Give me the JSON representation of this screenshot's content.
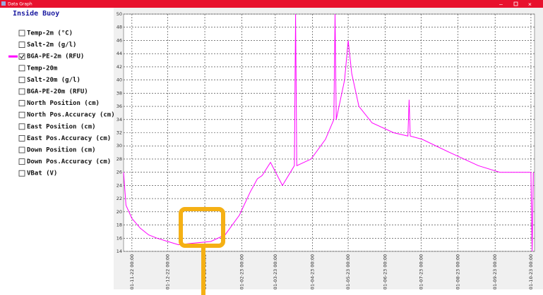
{
  "window": {
    "title": "Data Graph"
  },
  "sidebar": {
    "heading": "Inside Buoy",
    "items": [
      {
        "label": "Temp-2m (°C)",
        "checked": false
      },
      {
        "label": "Salt-2m (g/l)",
        "checked": false
      },
      {
        "label": "BGA-PE-2m (RFU)",
        "checked": true
      },
      {
        "label": "Temp-20m",
        "checked": false
      },
      {
        "label": "Salt-20m (g/l)",
        "checked": false
      },
      {
        "label": "BGA-PE-20m (RFU)",
        "checked": false
      },
      {
        "label": "North Position (cm)",
        "checked": false
      },
      {
        "label": "North Pos.Accuracy (cm)",
        "checked": false
      },
      {
        "label": "East Position (cm)",
        "checked": false
      },
      {
        "label": "East Pos.Accuracy (cm)",
        "checked": false
      },
      {
        "label": "Down Position (cm)",
        "checked": false
      },
      {
        "label": "Down Pos.Accuracy (cm)",
        "checked": false
      },
      {
        "label": "VBat (V)",
        "checked": false
      }
    ]
  },
  "chart_data": {
    "type": "line",
    "x": [
      "2022-10-25",
      "2022-10-27",
      "2022-11-01",
      "2022-11-08",
      "2022-11-15",
      "2022-11-22",
      "2022-12-01",
      "2022-12-10",
      "2022-12-20",
      "2023-01-06",
      "2023-01-18",
      "2023-01-30",
      "2023-02-08",
      "2023-02-14",
      "2023-02-18",
      "2023-02-25",
      "2023-03-07",
      "2023-03-17",
      "2023-03-18",
      "2023-03-19",
      "2023-03-31",
      "2023-04-12",
      "2023-04-19",
      "2023-04-20",
      "2023-04-21",
      "2023-04-28",
      "2023-05-01",
      "2023-05-04",
      "2023-05-10",
      "2023-05-21",
      "2023-06-08",
      "2023-06-20",
      "2023-06-21",
      "2023-06-22",
      "2023-07-02",
      "2023-07-25",
      "2023-08-18",
      "2023-09-05",
      "2023-09-28",
      "2023-10-01",
      "2023-10-02",
      "2023-10-03"
    ],
    "series": [
      {
        "color": "#ff00ff",
        "values": [
          26,
          21,
          19,
          17.5,
          16.5,
          16,
          15.5,
          15,
          15.2,
          15.5,
          16.5,
          19.5,
          23,
          25,
          25.5,
          27.5,
          24,
          27,
          50,
          27,
          28,
          31,
          34,
          50,
          34,
          40,
          46,
          41,
          36,
          33.5,
          32,
          31.5,
          37,
          31.5,
          31,
          29,
          27,
          26,
          26,
          26,
          14,
          26
        ]
      }
    ],
    "xlim": [
      "2022-10-25",
      "2023-10-04"
    ],
    "xticks": [
      {
        "value": "2022-11-01",
        "label": "01-11-22 00:00"
      },
      {
        "value": "2022-12-01",
        "label": "01-12-22 00:00"
      },
      {
        "value": "2023-01-01",
        "label": "01-01-23 00:00"
      },
      {
        "value": "2023-02-01",
        "label": "01-02-23 00:00"
      },
      {
        "value": "2023-03-01",
        "label": "01-03-23 00:00"
      },
      {
        "value": "2023-04-01",
        "label": "01-04-23 00:00"
      },
      {
        "value": "2023-05-01",
        "label": "01-05-23 00:00"
      },
      {
        "value": "2023-06-01",
        "label": "01-06-23 00:00"
      },
      {
        "value": "2023-07-01",
        "label": "01-07-23 00:00"
      },
      {
        "value": "2023-08-01",
        "label": "01-08-23 00:00"
      },
      {
        "value": "2023-09-01",
        "label": "01-09-23 00:00"
      },
      {
        "value": "2023-10-01",
        "label": "01-10-23 00:00"
      }
    ],
    "ylim": [
      14,
      50
    ],
    "yticks": [
      14,
      16,
      18,
      20,
      22,
      24,
      26,
      28,
      30,
      32,
      34,
      36,
      38,
      40,
      42,
      44,
      46,
      48,
      50
    ],
    "grid": true
  }
}
